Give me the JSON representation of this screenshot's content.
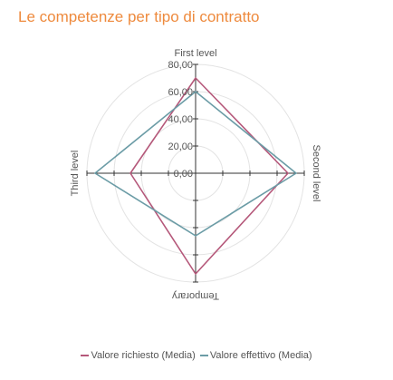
{
  "chart_data": {
    "type": "radar",
    "title": "Le competenze per tipo di contratto",
    "categories": [
      "First level",
      "Second level",
      "Temporary",
      "Third level"
    ],
    "rlim": [
      0,
      80
    ],
    "ticks": [
      "0,00",
      "20,00",
      "40,00",
      "60,00",
      "80,00"
    ],
    "tick_values": [
      0,
      20,
      40,
      60,
      80
    ],
    "grid": true,
    "legend_position": "bottom",
    "series": [
      {
        "name": "Valore richiesto (Media)",
        "color": "#b5587a",
        "values": [
          70,
          68,
          74,
          48
        ]
      },
      {
        "name": "Valore effettivo (Media)",
        "color": "#6b9ca6",
        "values": [
          60,
          74,
          46,
          74
        ]
      }
    ]
  }
}
